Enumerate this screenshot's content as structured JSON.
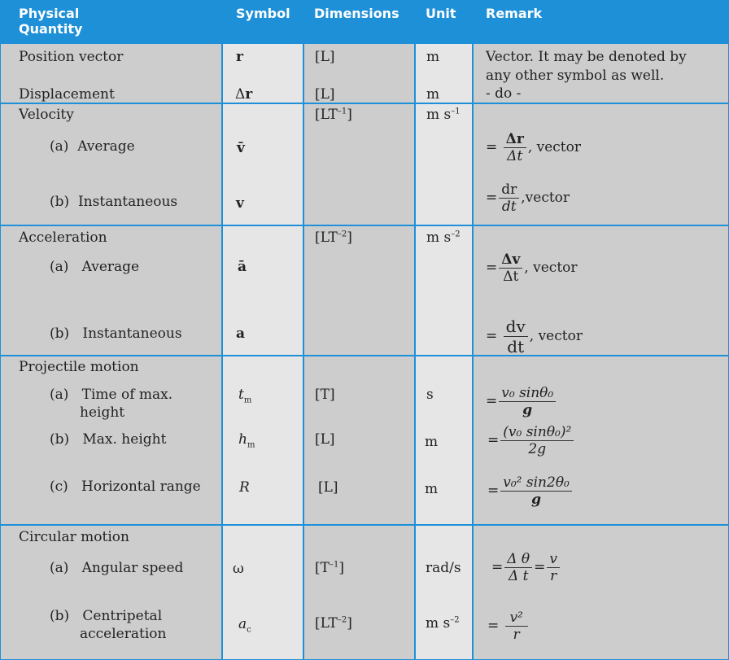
{
  "headers": {
    "quantity": [
      "Physical",
      "Quantity"
    ],
    "symbol": "Symbol",
    "dimensions": "Dimensions",
    "unit": "Unit",
    "remark": "Remark"
  },
  "position": {
    "name": "Position vector",
    "symbol": "r",
    "dim": "[L]",
    "unit": "m",
    "remark1": "Vector. It may be denoted by",
    "remark2": "any other symbol as well."
  },
  "displacement": {
    "name": "Displacement",
    "symbol_delta": "Δ",
    "symbol": "r",
    "dim": "[L]",
    "unit": "m",
    "remark": "- do -"
  },
  "velocity": {
    "title": "Velocity",
    "dim_base": "[LT",
    "dim_exp": "–1",
    "dim_close": "]",
    "unit_base": "m s",
    "unit_exp": "–1",
    "average": {
      "label": "(a)",
      "name": "Average",
      "symbol": "v̄",
      "remark_eq": "=",
      "num": "Δr",
      "den": "Δt",
      "suffix": ", vector"
    },
    "instant": {
      "label": "(b)",
      "name": "Instantaneous",
      "symbol": "v",
      "remark_eq": "=",
      "num": "dr",
      "den": "dt",
      "suffix": ",vector"
    }
  },
  "acceleration": {
    "title": "Acceleration",
    "dim_base": "[LT",
    "dim_exp": "–2",
    "dim_close": "]",
    "unit_base": "m s",
    "unit_exp": "–2",
    "average": {
      "label": "(a)",
      "name": "Average",
      "symbol": "ā",
      "remark_eq": "=",
      "num": "Δv",
      "den": "Δt",
      "suffix": ",  vector"
    },
    "instant": {
      "label": "(b)",
      "name": "Instantaneous",
      "symbol": "a",
      "remark_eq": "=",
      "num": "dv",
      "den": "dt",
      "suffix": ",  vector"
    }
  },
  "projectile": {
    "title": "Projectile motion",
    "time": {
      "label": "(a)",
      "name1": "Time of max.",
      "name2": "height",
      "symbol": "t",
      "sub": "m",
      "dim": "[T]",
      "unit": "s",
      "remark_eq": "=",
      "num": "v₀ sinθ₀",
      "den": "g"
    },
    "height": {
      "label": "(b)",
      "name": "Max. height",
      "symbol": "h",
      "sub": "m",
      "dim": "[L]",
      "unit": "m",
      "remark_eq": "=",
      "num": "(v₀ sinθ₀)²",
      "den": "2g"
    },
    "range": {
      "label": "(c)",
      "name": "Horizontal range",
      "symbol": "R",
      "dim": "[L]",
      "unit": "m",
      "remark_eq": "=",
      "num": "v₀² sin2θ₀",
      "den": "g"
    }
  },
  "circular": {
    "title": "Circular  motion",
    "angular": {
      "label": "(a)",
      "name": "Angular speed",
      "symbol": "ω",
      "dim_base": "[T",
      "dim_exp": "–1",
      "dim_close": "]",
      "unit": "rad/s",
      "remark_eq": "=",
      "num1": "Δ θ",
      "den1": "Δ t",
      "eq2": "=",
      "num2": "v",
      "den2": "r"
    },
    "centripetal": {
      "label": "(b)",
      "name1": "Centripetal",
      "name2": "acceleration",
      "symbol": "a",
      "sub": "c",
      "dim_base": "[LT",
      "dim_exp": "–2",
      "dim_close": "]",
      "unit_base": "m s",
      "unit_exp": "–2",
      "remark_eq": "=",
      "num": "v²",
      "den": "r"
    }
  },
  "colors": {
    "header": "#1e90d8",
    "dark_cell": "#cdcdce",
    "light_cell": "#e6e6e7",
    "border": "#ffffff"
  }
}
